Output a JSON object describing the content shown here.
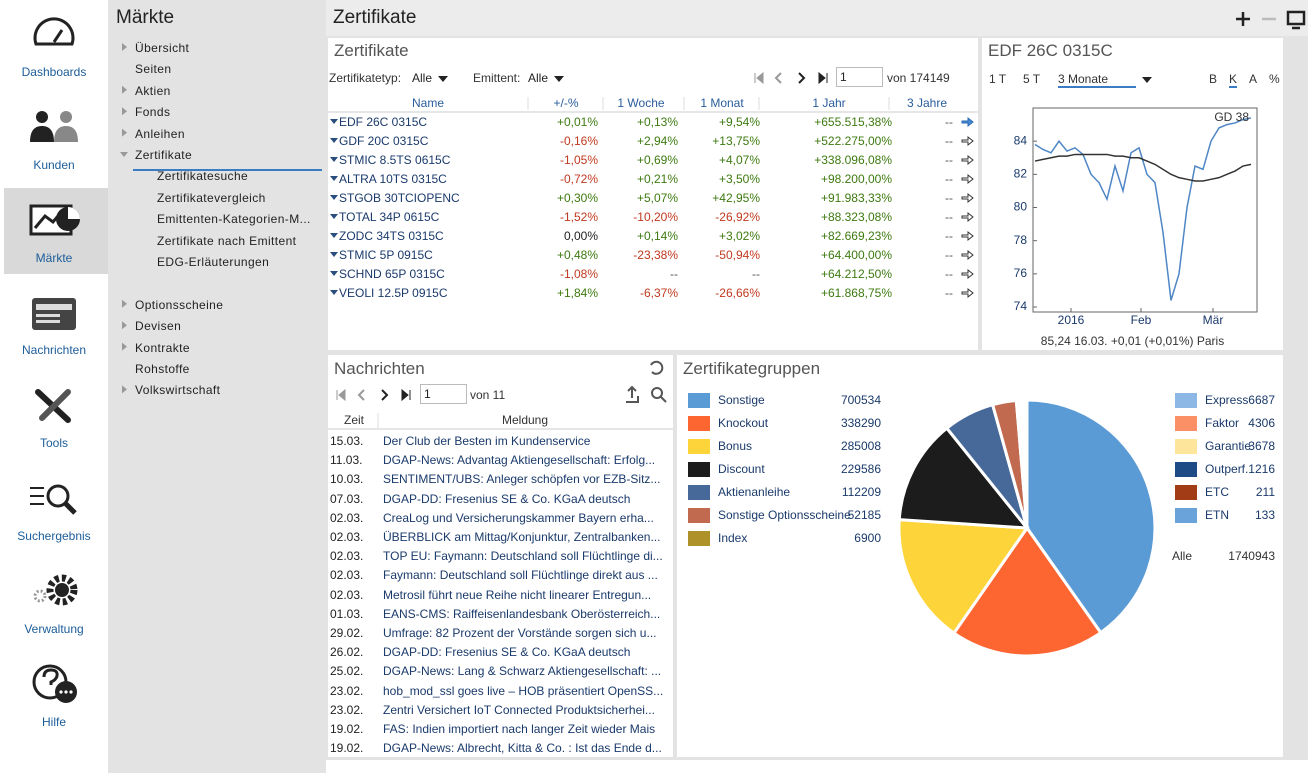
{
  "sidebar": {
    "items": [
      "Dashboards",
      "Kunden",
      "Märkte",
      "Nachrichten",
      "Tools",
      "Suchergebnis",
      "Verwaltung",
      "Hilfe"
    ],
    "selected": 2
  },
  "nav": {
    "title": "Märkte",
    "items": [
      {
        "label": "Übersicht",
        "arrow": true
      },
      {
        "label": "Seiten",
        "arrow": false
      },
      {
        "label": "Aktien",
        "arrow": true
      },
      {
        "label": "Fonds",
        "arrow": true
      },
      {
        "label": "Anleihen",
        "arrow": true
      },
      {
        "label": "Zertifikate",
        "arrow": true,
        "expanded": true,
        "children": [
          "Zertifikatesuche",
          "Zertifikatevergleich",
          "Emittenten-Kategorien-M...",
          "Zertifikate nach Emittent",
          "EDG-Erläuterungen"
        ]
      },
      {
        "label": "Optionsscheine",
        "arrow": true
      },
      {
        "label": "Devisen",
        "arrow": true
      },
      {
        "label": "Kontrakte",
        "arrow": true
      },
      {
        "label": "Rohstoffe",
        "arrow": false
      },
      {
        "label": "Volkswirtschaft",
        "arrow": true
      }
    ]
  },
  "header": {
    "title": "Zertifikate"
  },
  "certificates": {
    "title": "Zertifikate",
    "filters": [
      {
        "label": "Zertifikatetyp:",
        "value": "Alle"
      },
      {
        "label": "Emittent:",
        "value": "Alle"
      }
    ],
    "page": 1,
    "page_total": "von 174149",
    "columns": [
      "Name",
      "+/-%",
      "1 Woche",
      "1 Monat",
      "1 Jahr",
      "3 Jahre"
    ],
    "rows": [
      [
        "EDF 26C 0315C",
        "+0,01%",
        "+0,13%",
        "+9,54%",
        "+655.515,38%",
        "--"
      ],
      [
        "GDF 20C 0315C",
        "-0,16%",
        "+2,94%",
        "+13,75%",
        "+522.275,00%",
        "--"
      ],
      [
        "STMIC 8.5TS 0615C",
        "-1,05%",
        "+0,69%",
        "+4,07%",
        "+338.096,08%",
        "--"
      ],
      [
        "ALTRA 10TS 0315C",
        "-0,72%",
        "+0,21%",
        "+3,50%",
        "+98.200,00%",
        "--"
      ],
      [
        "STGOB 30TCIOPENC",
        "+0,30%",
        "+5,07%",
        "+42,95%",
        "+91.983,33%",
        "--"
      ],
      [
        "TOTAL 34P 0615C",
        "-1,52%",
        "-10,20%",
        "-26,92%",
        "+88.323,08%",
        "--"
      ],
      [
        "ZODC 34TS 0315C",
        "0,00%",
        "+0,14%",
        "+3,02%",
        "+82.669,23%",
        "--"
      ],
      [
        "STMIC 5P 0915C",
        "+0,48%",
        "-23,38%",
        "-50,94%",
        "+64.400,00%",
        "--"
      ],
      [
        "SCHND 65P 0315C",
        "-1,08%",
        "--",
        "--",
        "+64.212,50%",
        "--"
      ],
      [
        "VEOLI 12.5P 0915C",
        "+1,84%",
        "-6,37%",
        "-26,66%",
        "+61.868,75%",
        "--"
      ]
    ]
  },
  "news": {
    "title": "Nachrichten",
    "page": 1,
    "page_total": "von 11",
    "columns": [
      "Zeit",
      "Meldung"
    ],
    "rows": [
      [
        "15.03.",
        "Der Club der Besten im Kundenservice"
      ],
      [
        "11.03.",
        "DGAP-News: Advantag Aktiengesellschaft: Erfolg..."
      ],
      [
        "10.03.",
        "SENTIMENT/UBS: Anleger schöpfen vor EZB-Sitz..."
      ],
      [
        "07.03.",
        "DGAP-DD: Fresenius SE & Co. KGaA deutsch"
      ],
      [
        "02.03.",
        "CreaLog und Versicherungskammer Bayern erha..."
      ],
      [
        "02.03.",
        "ÜBERBLICK am Mittag/Konjunktur, Zentralbanken..."
      ],
      [
        "02.03.",
        "TOP EU: Faymann: Deutschland soll Flüchtlinge di..."
      ],
      [
        "02.03.",
        "Faymann: Deutschland soll Flüchtlinge direkt aus ..."
      ],
      [
        "02.03.",
        "Metrosil führt neue Reihe nicht linearer Entregun..."
      ],
      [
        "01.03.",
        "EANS-CMS: Raiffeisenlandesbank Oberösterreich..."
      ],
      [
        "29.02.",
        "Umfrage: 82 Prozent der Vorstände sorgen sich u..."
      ],
      [
        "26.02.",
        "DGAP-DD: Fresenius SE & Co. KGaA deutsch"
      ],
      [
        "25.02.",
        "DGAP-News: Lang & Schwarz Aktiengesellschaft: ..."
      ],
      [
        "23.02.",
        "hob_mod_ssl goes live – HOB präsentiert OpenSS..."
      ],
      [
        "23.02.",
        "Zentri Versichert IoT Connected Produktsicherhei..."
      ],
      [
        "19.02.",
        "FAS: Indien importiert nach langer Zeit wieder Mais"
      ],
      [
        "19.02.",
        "DGAP-News: Albrecht, Kitta & Co. : Ist das Ende d..."
      ]
    ]
  },
  "chart_data": [
    {
      "type": "line",
      "title": "EDF 26C 0315C",
      "ranges": [
        "1 T",
        "5 T",
        "3 Monate"
      ],
      "selected_range": 2,
      "modes": [
        "B",
        "K",
        "A",
        "%"
      ],
      "selected_mode": 1,
      "x": [
        0,
        2,
        4,
        6,
        8,
        10,
        12,
        14,
        16,
        18,
        20,
        22,
        24,
        26,
        28,
        30,
        32,
        34,
        36,
        38,
        40,
        42,
        44,
        46,
        48,
        50,
        52,
        54
      ],
      "series": [
        {
          "color": "#4f86c6",
          "values": [
            83.8,
            83.5,
            83.3,
            84.0,
            83.4,
            83.6,
            83.2,
            82.0,
            81.5,
            80.5,
            82.5,
            81.0,
            83.3,
            83.6,
            82.0,
            81.5,
            78.5,
            74.4,
            76.0,
            80.0,
            82.5,
            82.3,
            84.0,
            84.8,
            85.0,
            85.1,
            85.3,
            85.4
          ]
        },
        {
          "name": "GD 38",
          "color": "#333333",
          "values": [
            82.8,
            82.9,
            83.0,
            83.1,
            83.1,
            83.2,
            83.2,
            83.2,
            83.2,
            83.2,
            83.1,
            83.1,
            83.0,
            83.0,
            82.8,
            82.6,
            82.3,
            82.0,
            81.8,
            81.7,
            81.6,
            81.6,
            81.7,
            81.8,
            82.0,
            82.2,
            82.5,
            82.6
          ]
        }
      ],
      "xlim": [
        0,
        55
      ],
      "xticks": [
        {
          "value": 9,
          "label": "2016"
        },
        {
          "value": 26.5,
          "label": "Feb"
        },
        {
          "value": 44.5,
          "label": "Mär"
        }
      ],
      "ylim": [
        73.7,
        86
      ],
      "yticks": [
        74,
        76,
        78,
        80,
        82,
        84
      ],
      "footer": "85,24 16.03. +0,01 (+0,01%) Paris"
    },
    {
      "type": "pie",
      "title": "Zertifikategruppen",
      "categories": [
        "Sonstige",
        "Knockout",
        "Bonus",
        "Discount",
        "Aktienanleihe",
        "Sonstige Optionsscheine",
        "Index",
        "Express",
        "Faktor",
        "Garantie",
        "Outperf.",
        "ETC",
        "ETN"
      ],
      "values": [
        700534,
        338290,
        285008,
        229586,
        112209,
        52185,
        6900,
        6687,
        4306,
        3678,
        1216,
        211,
        133
      ],
      "colors": [
        "#5b9bd5",
        "#fd6531",
        "#fdd43a",
        "#1c1c1c",
        "#47699a",
        "#c26a4f",
        "#ae9128",
        "#8db8e6",
        "#fb9066",
        "#fde59b",
        "#1e4a86",
        "#a23c16",
        "#6aa2da"
      ],
      "total_label": "Alle",
      "total": 1740943
    }
  ]
}
